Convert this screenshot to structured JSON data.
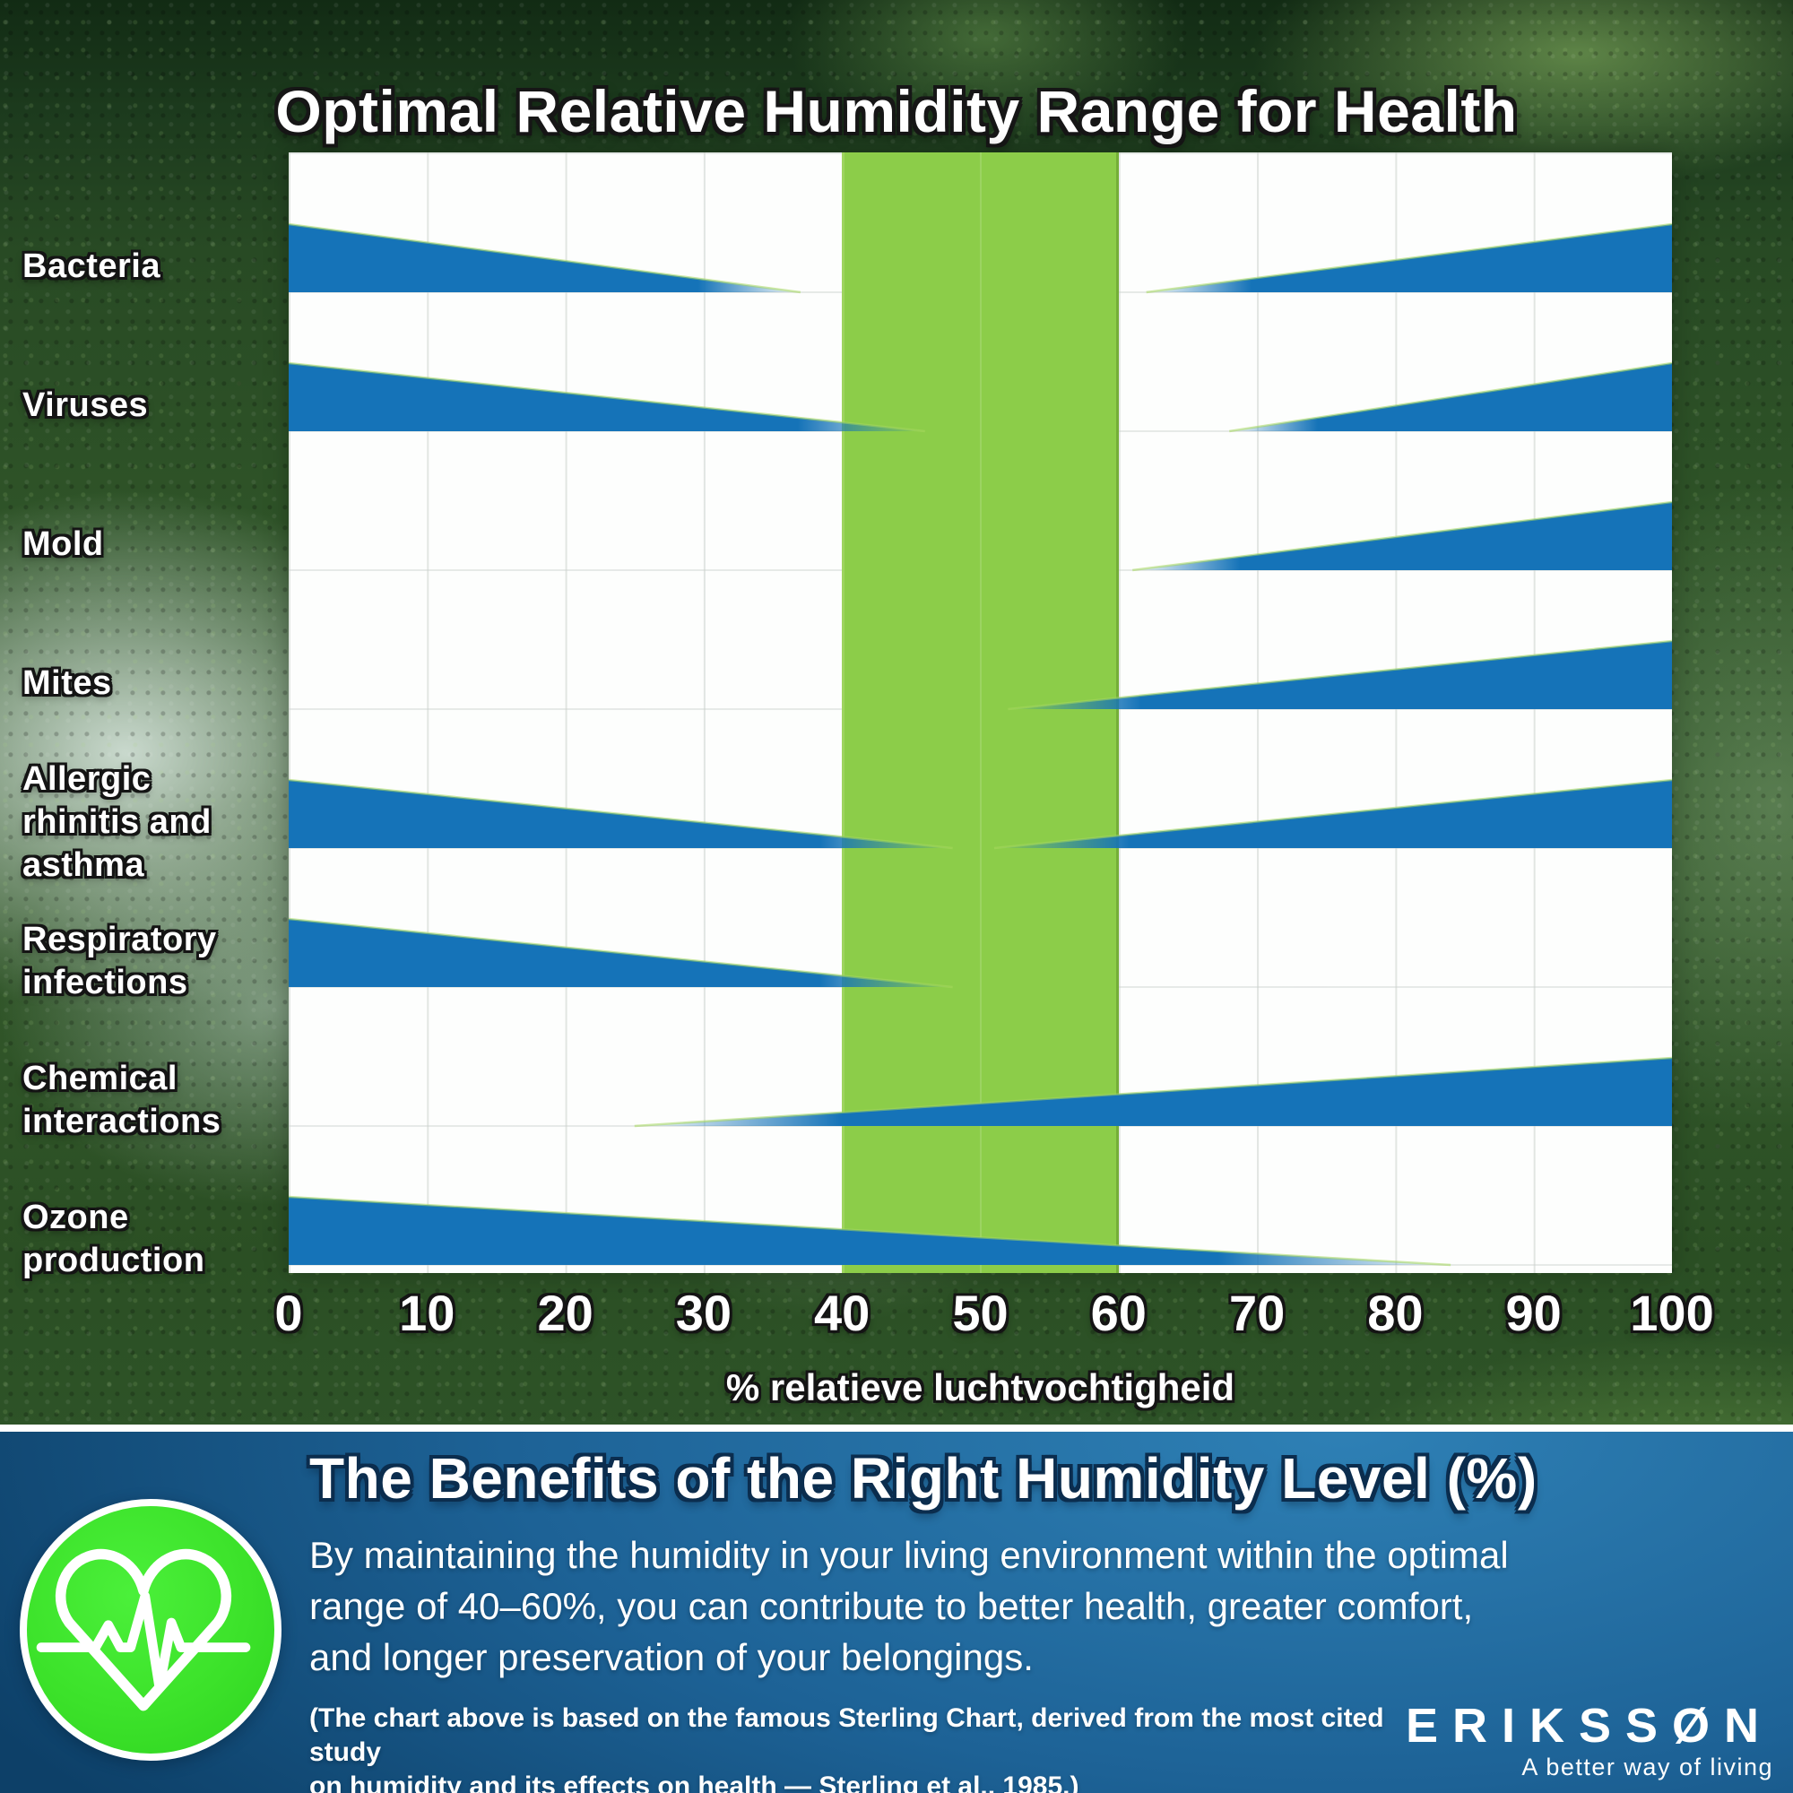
{
  "page": {
    "title": "Optimal Relative Humidity Range for Health"
  },
  "chart_data": {
    "type": "range-bar",
    "title": "Optimal Relative Humidity Range for Health",
    "xlabel": "% relatieve luchtvochtigheid",
    "xlim": [
      0,
      100
    ],
    "x_ticks": [
      0,
      10,
      20,
      30,
      40,
      50,
      60,
      70,
      80,
      90,
      100
    ],
    "grid": true,
    "optimal_range": {
      "from": 40,
      "to": 60
    },
    "rows": [
      {
        "label": "Bacteria",
        "label_lines": [
          "Bacteria"
        ],
        "decrease": [
          0,
          37
        ],
        "increase": [
          62,
          100
        ]
      },
      {
        "label": "Viruses",
        "label_lines": [
          "Viruses"
        ],
        "decrease": [
          0,
          46
        ],
        "increase": [
          68,
          100
        ]
      },
      {
        "label": "Mold",
        "label_lines": [
          "Mold"
        ],
        "increase": [
          61,
          100
        ]
      },
      {
        "label": "Mites",
        "label_lines": [
          "Mites"
        ],
        "increase": [
          52,
          100
        ]
      },
      {
        "label": "Allergic rhinitis and asthma",
        "label_lines": [
          "Allergic",
          "rhinitis and",
          "asthma"
        ],
        "decrease": [
          0,
          48
        ],
        "increase": [
          51,
          100
        ]
      },
      {
        "label": "Respiratory infections",
        "label_lines": [
          "Respiratory",
          "infections"
        ],
        "decrease": [
          0,
          48
        ]
      },
      {
        "label": "Chemical interactions",
        "label_lines": [
          "Chemical",
          "interactions"
        ],
        "increase": [
          25,
          100
        ]
      },
      {
        "label": "Ozone production",
        "label_lines": [
          "Ozone",
          "production"
        ],
        "decrease": [
          0,
          84
        ]
      }
    ]
  },
  "footer": {
    "heading": "The Benefits of the Right Humidity Level (%)",
    "body_lines": [
      "By maintaining the humidity in your living environment within the optimal",
      "range of 40–60%, you can contribute to better health, greater comfort,",
      "and longer preservation of your belongings."
    ],
    "note_lines": [
      "(The chart above is based on the famous Sterling Chart, derived from the most cited study",
      "on humidity and its effects on health — Sterling et al., 1985.)"
    ],
    "brand": {
      "logo": "ERIKSSØN",
      "tagline": "A better way of living"
    }
  },
  "colors": {
    "wedge_blue": "#1573b8",
    "optimal_green": "#8ccd49",
    "wedge_edge_green": "#a6d85e",
    "panel_blue_light": "#2e80b5",
    "panel_blue_dark": "#0d4068",
    "heart_green": "#3ce22a",
    "text_white": "#ffffff"
  }
}
